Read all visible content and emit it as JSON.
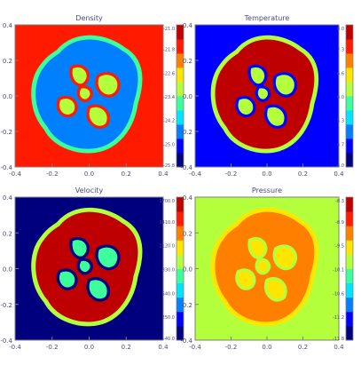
{
  "chart_data": [
    {
      "type": "heatmap",
      "title": "Density",
      "xlim": [
        -0.4,
        0.4
      ],
      "ylim": [
        -0.4,
        0.4
      ],
      "x_ticks": [
        "-0.2",
        "0.0",
        "0.2",
        "0.4"
      ],
      "y_ticks": [
        "-0.4",
        "-0.2",
        "0.0",
        "0.2",
        "0.4"
      ],
      "colorbar_labels": [
        "-21.0",
        "-21.8",
        "-22.6",
        "-23.4",
        "-24.2",
        "-25.0",
        "-25.8"
      ],
      "colorbar_range": [
        -25.8,
        -21.0
      ],
      "background_value": -21.8,
      "blob_value": -24.8,
      "grid": false
    },
    {
      "type": "heatmap",
      "title": "Temperature",
      "xlim": [
        -0.4,
        0.4
      ],
      "ylim": [
        -0.4,
        0.4
      ],
      "x_ticks": [
        "-0.2",
        "0.0",
        "0.2",
        "0.4"
      ],
      "y_ticks": [
        "-0.4",
        "-0.2",
        "0.0",
        "0.2",
        "0.4"
      ],
      "colorbar_labels": [
        "8.0",
        "7.3",
        "6.6",
        "6.0",
        "5.3",
        "4.7",
        "4.0"
      ],
      "colorbar_range": [
        4.0,
        8.0
      ],
      "background_value": 4.5,
      "blob_value": 7.6,
      "grid": false
    },
    {
      "type": "heatmap",
      "title": "Velocity",
      "xlim": [
        -0.4,
        0.4
      ],
      "ylim": [
        -0.4,
        0.4
      ],
      "x_ticks": [
        "-0.2",
        "0.0",
        "0.2",
        "0.4"
      ],
      "y_ticks": [
        "-0.4",
        "-0.2",
        "0.0",
        "0.2",
        "0.4"
      ],
      "colorbar_labels": [
        "1700.0",
        "1410.0",
        "1120.0",
        "830.0",
        "540.0",
        "250.0",
        "-40.0"
      ],
      "colorbar_range": [
        -40.0,
        1700.0
      ],
      "background_value": 20.0,
      "blob_value": 1550.0,
      "grid": false
    },
    {
      "type": "heatmap",
      "title": "Pressure",
      "xlim": [
        -0.4,
        0.4
      ],
      "ylim": [
        -0.4,
        0.4
      ],
      "x_ticks": [
        "-0.2",
        "0.0",
        "0.2",
        "0.4"
      ],
      "y_ticks": [
        "-0.4",
        "-0.2",
        "0.0",
        "0.2",
        "0.4"
      ],
      "colorbar_labels": [
        "-8.3",
        "-8.9",
        "-9.5",
        "-10.1",
        "-10.6",
        "-11.2",
        "-11.8"
      ],
      "colorbar_range": [
        -11.8,
        -8.3
      ],
      "background_value": -10.0,
      "blob_value": -9.2,
      "grid": false
    }
  ],
  "colors": {
    "colormap": [
      "#00007f",
      "#0000ff",
      "#0080ff",
      "#00e5ff",
      "#3cff9c",
      "#b4ff3c",
      "#ffe600",
      "#ff8000",
      "#ff1a00",
      "#bf0000"
    ],
    "axis": "#7f7f7f",
    "label_text": "#4a4a78",
    "title_text": "#4a4a78"
  }
}
